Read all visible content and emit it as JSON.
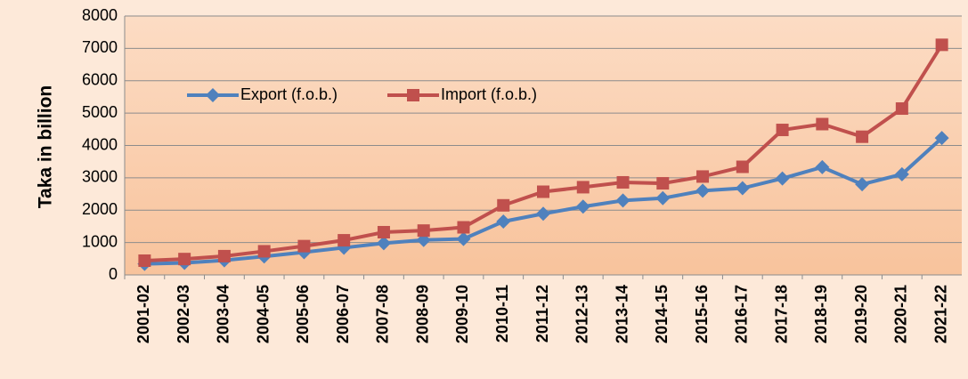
{
  "chart_data": {
    "type": "line",
    "y_label": "Taka in billion",
    "categories": [
      "2001-02",
      "2002-03",
      "2003-04",
      "2004-05",
      "2005-06",
      "2006-07",
      "2007-08",
      "2008-09",
      "2009-10",
      "2010-11",
      "2011-12",
      "2012-13",
      "2013-14",
      "2014-15",
      "2015-16",
      "2016-17",
      "2017-18",
      "2018-19",
      "2019-20",
      "2020-21",
      "2021-22"
    ],
    "series": [
      {
        "name": "Export (f.o.b.)",
        "color": "#4f81bd",
        "values": [
          340,
          370,
          450,
          570,
          700,
          840,
          980,
          1080,
          1110,
          1650,
          1890,
          2110,
          2300,
          2370,
          2600,
          2680,
          2980,
          3330,
          2800,
          3110,
          4230
        ]
      },
      {
        "name": "Import (f.o.b.)",
        "color": "#c0504d",
        "values": [
          440,
          490,
          580,
          730,
          890,
          1070,
          1320,
          1370,
          1470,
          2150,
          2570,
          2710,
          2860,
          2830,
          3040,
          3340,
          4480,
          4660,
          4270,
          5140,
          7110
        ]
      }
    ],
    "ylim": [
      0,
      8000
    ],
    "yticks": [
      0,
      1000,
      2000,
      3000,
      4000,
      5000,
      6000,
      7000,
      8000
    ],
    "grid": true
  }
}
